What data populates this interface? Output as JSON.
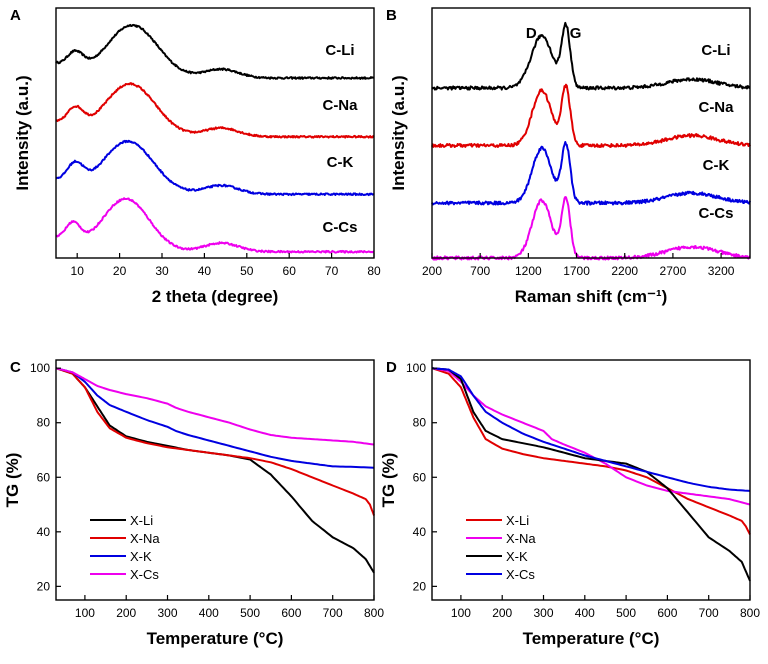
{
  "chart_data": [
    {
      "panel": "A",
      "type": "line",
      "title": "",
      "xlabel": "2 theta (degree)",
      "ylabel": "Intensity (a.u.)",
      "xlim": [
        5,
        80
      ],
      "xticks": [
        10,
        20,
        30,
        40,
        50,
        60,
        70,
        80
      ],
      "ylim": [
        0,
        10
      ],
      "yticks": [],
      "series": [
        {
          "name": "C-Li",
          "color": "#000000",
          "offset": 7.2,
          "peaks": [
            {
              "c": 9.5,
              "a": 0.7,
              "w": 2.0
            },
            {
              "c": 23,
              "a": 2.1,
              "w": 6.0
            },
            {
              "c": 44,
              "a": 0.35,
              "w": 4.0
            }
          ]
        },
        {
          "name": "C-Na",
          "color": "#e00000",
          "offset": 4.85,
          "peaks": [
            {
              "c": 9.5,
              "a": 0.8,
              "w": 2.0
            },
            {
              "c": 22.5,
              "a": 2.1,
              "w": 6.0
            },
            {
              "c": 44,
              "a": 0.35,
              "w": 4.0
            }
          ]
        },
        {
          "name": "C-K",
          "color": "#0000e0",
          "offset": 2.55,
          "peaks": [
            {
              "c": 9.5,
              "a": 0.85,
              "w": 2.0
            },
            {
              "c": 22,
              "a": 2.1,
              "w": 6.0
            },
            {
              "c": 44,
              "a": 0.35,
              "w": 4.0
            }
          ]
        },
        {
          "name": "C-Cs",
          "color": "#ee00ee",
          "offset": 0.25,
          "peaks": [
            {
              "c": 9.0,
              "a": 0.8,
              "w": 1.8
            },
            {
              "c": 21.5,
              "a": 2.1,
              "w": 5.5
            },
            {
              "c": 44,
              "a": 0.35,
              "w": 4.0
            }
          ]
        }
      ]
    },
    {
      "panel": "B",
      "type": "line",
      "title": "",
      "xlabel": "Raman shift (cm⁻¹)",
      "ylabel": "Intensity (a.u.)",
      "xlim": [
        200,
        3500
      ],
      "xticks": [
        200,
        700,
        1200,
        1700,
        2200,
        2700,
        3200
      ],
      "ylim": [
        0,
        10
      ],
      "yticks": [],
      "annotations": [
        "D",
        "G"
      ],
      "series": [
        {
          "name": "C-Li",
          "color": "#000000",
          "offset": 6.8,
          "peaks": [
            {
              "c": 1340,
              "a": 2.1,
              "w": 110
            },
            {
              "c": 1590,
              "a": 2.4,
              "w": 45
            },
            {
              "c": 2900,
              "a": 0.35,
              "w": 260
            }
          ]
        },
        {
          "name": "C-Na",
          "color": "#e00000",
          "offset": 4.5,
          "peaks": [
            {
              "c": 1340,
              "a": 2.2,
              "w": 100
            },
            {
              "c": 1590,
              "a": 2.3,
              "w": 45
            },
            {
              "c": 2900,
              "a": 0.4,
              "w": 260
            }
          ]
        },
        {
          "name": "C-K",
          "color": "#0000e0",
          "offset": 2.2,
          "peaks": [
            {
              "c": 1340,
              "a": 2.2,
              "w": 100
            },
            {
              "c": 1590,
              "a": 2.3,
              "w": 45
            },
            {
              "c": 2900,
              "a": 0.4,
              "w": 260
            }
          ]
        },
        {
          "name": "C-Cs",
          "color": "#ee00ee",
          "offset": 0.0,
          "peaks": [
            {
              "c": 1340,
              "a": 2.3,
              "w": 100
            },
            {
              "c": 1590,
              "a": 2.3,
              "w": 45
            },
            {
              "c": 2900,
              "a": 0.45,
              "w": 260
            }
          ]
        }
      ]
    },
    {
      "panel": "C",
      "type": "line",
      "title": "",
      "xlabel": "Temperature (°C)",
      "ylabel": "TG (%)",
      "xlim": [
        30,
        800
      ],
      "xticks": [
        100,
        200,
        300,
        400,
        500,
        600,
        700,
        800
      ],
      "ylim": [
        15,
        103
      ],
      "yticks": [
        20,
        40,
        60,
        80,
        100
      ],
      "legend": "lower-left",
      "series": [
        {
          "name": "X-Li",
          "color": "#000000",
          "x": [
            30,
            70,
            100,
            130,
            160,
            200,
            250,
            300,
            350,
            400,
            450,
            500,
            550,
            600,
            650,
            700,
            750,
            780,
            800
          ],
          "y": [
            100,
            98,
            93,
            86,
            79,
            75,
            73,
            71.5,
            70,
            69,
            68,
            66.5,
            61,
            53,
            44,
            38,
            34,
            30,
            25
          ]
        },
        {
          "name": "X-Na",
          "color": "#e00000",
          "x": [
            30,
            70,
            100,
            130,
            160,
            200,
            250,
            300,
            350,
            400,
            450,
            500,
            550,
            600,
            650,
            700,
            750,
            780,
            790,
            800
          ],
          "y": [
            100,
            98,
            93,
            84,
            78,
            74.5,
            72.5,
            71,
            70,
            69,
            68,
            67,
            65.5,
            63,
            60,
            57,
            54,
            52,
            50,
            46
          ]
        },
        {
          "name": "X-K",
          "color": "#0000e0",
          "x": [
            30,
            70,
            100,
            130,
            160,
            200,
            250,
            300,
            320,
            350,
            400,
            450,
            500,
            550,
            600,
            650,
            700,
            750,
            800
          ],
          "y": [
            100,
            98.5,
            95,
            90,
            86.5,
            84,
            81,
            78.5,
            77,
            75.5,
            73.5,
            71.5,
            69.5,
            67.5,
            66,
            65,
            64,
            63.8,
            63.5
          ]
        },
        {
          "name": "X-Cs",
          "color": "#ee00ee",
          "x": [
            30,
            70,
            100,
            130,
            160,
            200,
            250,
            300,
            320,
            350,
            400,
            450,
            500,
            550,
            600,
            650,
            700,
            750,
            800
          ],
          "y": [
            100,
            98.5,
            96,
            93.5,
            92,
            90.5,
            89,
            87,
            85.5,
            84,
            82,
            80,
            77.5,
            75.5,
            74.5,
            74,
            73.5,
            73,
            72
          ]
        }
      ]
    },
    {
      "panel": "D",
      "type": "line",
      "title": "",
      "xlabel": "Temperature (°C)",
      "ylabel": "TG (%)",
      "xlim": [
        30,
        800
      ],
      "xticks": [
        100,
        200,
        300,
        400,
        500,
        600,
        700,
        800
      ],
      "ylim": [
        15,
        103
      ],
      "yticks": [
        20,
        40,
        60,
        80,
        100
      ],
      "legend": "lower-left",
      "series": [
        {
          "name": "X-Li",
          "color": "#e00000",
          "x": [
            30,
            70,
            100,
            130,
            160,
            200,
            250,
            300,
            350,
            400,
            450,
            500,
            550,
            600,
            650,
            700,
            750,
            780,
            790,
            800
          ],
          "y": [
            100,
            98,
            93,
            82,
            74,
            70.5,
            68.5,
            67,
            66,
            65,
            64,
            62.5,
            60,
            56,
            52,
            49,
            46,
            44,
            42,
            39
          ]
        },
        {
          "name": "X-Na",
          "color": "#ee00ee",
          "x": [
            30,
            70,
            100,
            130,
            160,
            200,
            250,
            300,
            320,
            350,
            400,
            450,
            500,
            550,
            600,
            650,
            700,
            750,
            800
          ],
          "y": [
            100,
            99,
            95,
            90,
            86,
            83,
            80,
            77,
            74,
            72,
            69,
            65,
            60,
            57,
            55,
            54,
            53,
            52,
            50
          ]
        },
        {
          "name": "X-K",
          "color": "#000000",
          "x": [
            30,
            70,
            100,
            130,
            160,
            200,
            250,
            300,
            350,
            400,
            450,
            500,
            550,
            600,
            650,
            700,
            750,
            780,
            800
          ],
          "y": [
            100,
            99.5,
            96,
            84,
            77,
            74,
            72.5,
            71,
            69,
            67,
            66,
            65,
            62,
            56,
            47,
            38,
            33,
            29,
            22
          ]
        },
        {
          "name": "X-Cs",
          "color": "#0000e0",
          "x": [
            30,
            70,
            100,
            130,
            160,
            200,
            250,
            300,
            350,
            400,
            450,
            500,
            550,
            600,
            650,
            700,
            750,
            800
          ],
          "y": [
            100,
            99.5,
            97,
            90,
            84,
            80,
            76,
            73,
            70.5,
            68,
            66,
            64,
            62,
            60,
            58,
            56.5,
            55.5,
            55
          ]
        }
      ]
    }
  ]
}
